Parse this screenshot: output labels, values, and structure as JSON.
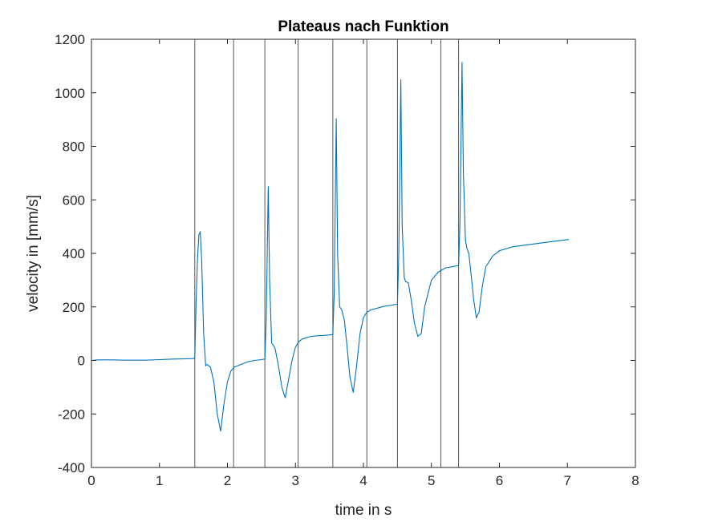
{
  "chart_data": {
    "type": "line",
    "title": "Plateaus nach Funktion",
    "xlabel": "time in s",
    "ylabel": "velocity in [mm/s]",
    "xlim": [
      0,
      8
    ],
    "ylim": [
      -400,
      1200
    ],
    "xticks": [
      0,
      1,
      2,
      3,
      4,
      5,
      6,
      7,
      8
    ],
    "yticks": [
      -400,
      -200,
      0,
      200,
      400,
      600,
      800,
      1000,
      1200
    ],
    "grid": false,
    "line_color": "#0072BD",
    "vline_color": "#404040",
    "vertical_lines": [
      1.52,
      2.09,
      2.55,
      3.04,
      3.55,
      4.05,
      4.5,
      5.14,
      5.4
    ],
    "series": [
      {
        "x": [
          0,
          0.1,
          0.3,
          0.5,
          0.8,
          1.0,
          1.2,
          1.4,
          1.5,
          1.52,
          1.54,
          1.56,
          1.58,
          1.6,
          1.62,
          1.65,
          1.68,
          1.7,
          1.75,
          1.8,
          1.85,
          1.9,
          1.95,
          2.0,
          2.05,
          2.1,
          2.2,
          2.3,
          2.4,
          2.5,
          2.55,
          2.57,
          2.6,
          2.62,
          2.65,
          2.68,
          2.7,
          2.75,
          2.8,
          2.85,
          2.9,
          2.95,
          3.0,
          3.05,
          3.1,
          3.2,
          3.3,
          3.4,
          3.5,
          3.55,
          3.57,
          3.6,
          3.62,
          3.65,
          3.68,
          3.72,
          3.76,
          3.8,
          3.85,
          3.9,
          3.95,
          4.0,
          4.05,
          4.1,
          4.2,
          4.3,
          4.4,
          4.5,
          4.52,
          4.55,
          4.57,
          4.6,
          4.62,
          4.66,
          4.7,
          4.75,
          4.8,
          4.85,
          4.9,
          5.0,
          5.1,
          5.2,
          5.3,
          5.4,
          5.42,
          5.45,
          5.47,
          5.5,
          5.52,
          5.55,
          5.58,
          5.62,
          5.66,
          5.7,
          5.75,
          5.8,
          5.9,
          6.0,
          6.2,
          6.5,
          6.8,
          7.02
        ],
        "y": [
          0,
          2,
          2,
          1,
          1,
          3,
          5,
          6,
          7,
          10,
          230,
          380,
          470,
          480,
          380,
          100,
          -20,
          -15,
          -25,
          -80,
          -200,
          -265,
          -160,
          -80,
          -40,
          -25,
          -15,
          -5,
          0,
          3,
          5,
          150,
          650,
          300,
          65,
          55,
          45,
          -20,
          -100,
          -140,
          -70,
          0,
          50,
          70,
          80,
          88,
          92,
          93,
          95,
          97,
          250,
          905,
          400,
          200,
          190,
          150,
          50,
          -60,
          -120,
          -20,
          100,
          160,
          180,
          188,
          195,
          202,
          206,
          210,
          400,
          1050,
          500,
          310,
          295,
          290,
          230,
          140,
          90,
          100,
          200,
          300,
          330,
          345,
          350,
          355,
          520,
          1115,
          700,
          450,
          420,
          400,
          330,
          230,
          160,
          180,
          280,
          350,
          390,
          410,
          425,
          435,
          445,
          452
        ]
      }
    ]
  }
}
